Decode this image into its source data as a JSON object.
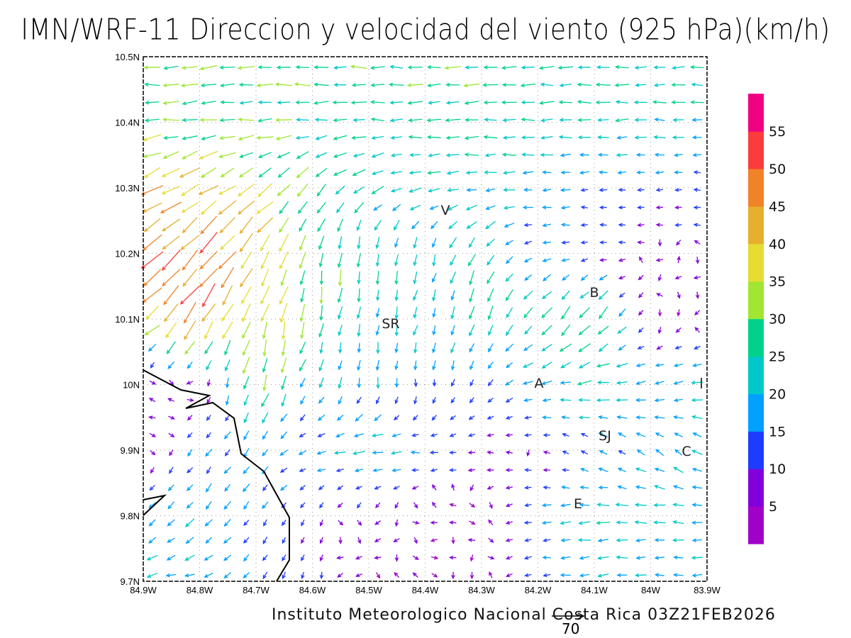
{
  "title": "IMN/WRF-11 Direccion y velocidad del viento (925 hPa)(km/h)",
  "footer": "Instituto Meteorologico Nacional Costa Rica 03Z21FEB2026",
  "reference_vector": {
    "label": "70",
    "speed": 70
  },
  "chart_data": {
    "type": "vector-field",
    "title": "IMN/WRF-11 Direccion y velocidad del viento (925 hPa)(km/h)",
    "units": "km/h",
    "lon_ticks": [
      "84.9W",
      "84.8W",
      "84.7W",
      "84.6W",
      "84.5W",
      "84.4W",
      "84.3W",
      "84.2W",
      "84.1W",
      "84W",
      "83.9W"
    ],
    "lat_ticks": [
      "10.5N",
      "10.4N",
      "10.3N",
      "10.2N",
      "10.1N",
      "10N",
      "9.9N",
      "9.8N",
      "9.7N"
    ],
    "lon_range": [
      -84.9,
      -83.9
    ],
    "lat_range": [
      9.7,
      10.5
    ],
    "grid_note": "coarse estimate: rows lat 10.5..9.7 step 0.1, cols lon 84.9W..83.9W step 0.1; each [speed km/h, direction toward (deg compass)]",
    "field": [
      [
        [
          30,
          270
        ],
        [
          30,
          265
        ],
        [
          30,
          268
        ],
        [
          28,
          270
        ],
        [
          28,
          270
        ],
        [
          28,
          270
        ],
        [
          27,
          270
        ],
        [
          26,
          270
        ],
        [
          25,
          270
        ],
        [
          25,
          270
        ],
        [
          25,
          270
        ]
      ],
      [
        [
          32,
          265
        ],
        [
          30,
          265
        ],
        [
          28,
          268
        ],
        [
          26,
          270
        ],
        [
          25,
          270
        ],
        [
          25,
          270
        ],
        [
          26,
          268
        ],
        [
          25,
          268
        ],
        [
          25,
          270
        ],
        [
          22,
          270
        ],
        [
          22,
          270
        ]
      ],
      [
        [
          42,
          240
        ],
        [
          40,
          240
        ],
        [
          35,
          235
        ],
        [
          30,
          220
        ],
        [
          25,
          245
        ],
        [
          22,
          262
        ],
        [
          22,
          265
        ],
        [
          18,
          270
        ],
        [
          15,
          270
        ],
        [
          12,
          270
        ],
        [
          12,
          275
        ]
      ],
      [
        [
          48,
          230
        ],
        [
          52,
          225
        ],
        [
          42,
          215
        ],
        [
          30,
          190
        ],
        [
          28,
          185
        ],
        [
          20,
          190
        ],
        [
          28,
          210
        ],
        [
          15,
          260
        ],
        [
          10,
          270
        ],
        [
          8,
          270
        ],
        [
          8,
          270
        ]
      ],
      [
        [
          35,
          235
        ],
        [
          52,
          215
        ],
        [
          40,
          195
        ],
        [
          30,
          190
        ],
        [
          20,
          185
        ],
        [
          20,
          200
        ],
        [
          25,
          195
        ],
        [
          25,
          215
        ],
        [
          35,
          220
        ],
        [
          5,
          200
        ],
        [
          5,
          200
        ]
      ],
      [
        [
          5,
          180
        ],
        [
          5,
          200
        ],
        [
          30,
          195
        ],
        [
          20,
          210
        ],
        [
          20,
          185
        ],
        [
          15,
          180
        ],
        [
          15,
          215
        ],
        [
          20,
          260
        ],
        [
          25,
          265
        ],
        [
          20,
          260
        ],
        [
          20,
          260
        ]
      ],
      [
        [
          5,
          200
        ],
        [
          15,
          220
        ],
        [
          20,
          215
        ],
        [
          15,
          260
        ],
        [
          25,
          265
        ],
        [
          15,
          270
        ],
        [
          10,
          270
        ],
        [
          8,
          280
        ],
        [
          15,
          300
        ],
        [
          20,
          305
        ],
        [
          20,
          300
        ]
      ],
      [
        [
          20,
          225
        ],
        [
          20,
          220
        ],
        [
          15,
          215
        ],
        [
          10,
          210
        ],
        [
          8,
          200
        ],
        [
          5,
          200
        ],
        [
          5,
          200
        ],
        [
          15,
          265
        ],
        [
          25,
          265
        ],
        [
          20,
          270
        ],
        [
          20,
          275
        ]
      ],
      [
        [
          20,
          260
        ],
        [
          20,
          255
        ],
        [
          15,
          220
        ],
        [
          10,
          190
        ],
        [
          5,
          200
        ],
        [
          5,
          210
        ],
        [
          5,
          200
        ],
        [
          15,
          265
        ],
        [
          20,
          265
        ],
        [
          20,
          270
        ],
        [
          20,
          270
        ]
      ]
    ],
    "colorbar": {
      "labels": [
        "5",
        "10",
        "15",
        "20",
        "25",
        "30",
        "35",
        "40",
        "45",
        "50",
        "55"
      ],
      "colors": [
        "#a000c8",
        "#8200dc",
        "#1e3cff",
        "#00a0ff",
        "#00c8c8",
        "#00d28c",
        "#a0e632",
        "#e6dc32",
        "#e6af2d",
        "#f08228",
        "#fa3c3c",
        "#f00082"
      ]
    },
    "station_labels": [
      "V",
      "B",
      "SR",
      "A",
      "SJ",
      "C",
      "E"
    ],
    "coastline": true
  }
}
